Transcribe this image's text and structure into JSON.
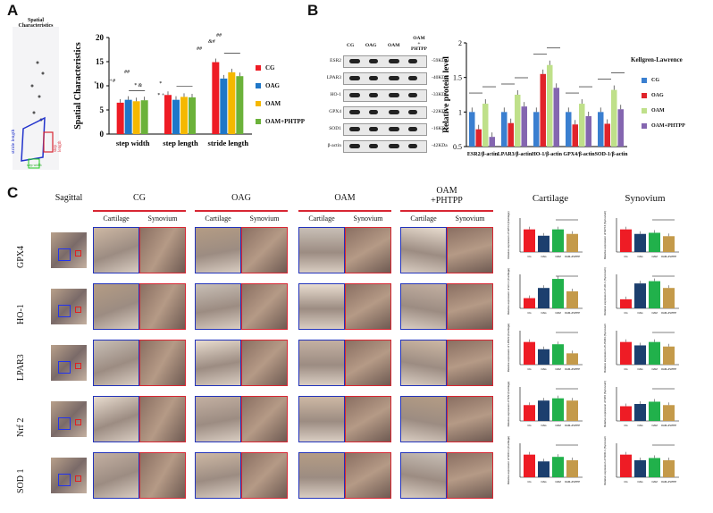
{
  "panelA": {
    "letter": "A",
    "mouse_label": "Spatial Characteristics",
    "stride_label": "stride length",
    "step_width_label": "step width",
    "step_length_label": "step length",
    "chart_data": {
      "type": "bar",
      "categories": [
        "step width",
        "step length",
        "stride length"
      ],
      "ylabel": "Spatial Characteristics",
      "ylim": [
        0,
        20
      ],
      "yticks": [
        "0",
        "5",
        "10",
        "15",
        "20"
      ],
      "series": [
        {
          "name": "CG",
          "color": "#ee1c25",
          "values": [
            6.5,
            8.1,
            14.9
          ]
        },
        {
          "name": "OAG",
          "color": "#1f77c8",
          "values": [
            7.1,
            7.1,
            11.5
          ]
        },
        {
          "name": "OAM",
          "color": "#f5b800",
          "values": [
            6.8,
            7.7,
            12.8
          ]
        },
        {
          "name": "OAM+PHTPP",
          "color": "#6bb23a",
          "values": [
            7.0,
            7.6,
            12.0
          ]
        }
      ],
      "annotations": [
        "*",
        "+#",
        "##",
        "* &",
        "*",
        "* +",
        "##",
        "&#",
        "##",
        "* &",
        "+"
      ]
    }
  },
  "panelB": {
    "letter": "B",
    "lanes": [
      "CG",
      "OAG",
      "OAM",
      "OAM\n+\nPHTPP"
    ],
    "blots": [
      {
        "name": "ESR2",
        "kda": "-59KDa"
      },
      {
        "name": "LPAR3",
        "kda": "-40KDa"
      },
      {
        "name": "HO-1",
        "kda": "-33KDa"
      },
      {
        "name": "GPX4",
        "kda": "-22KDa"
      },
      {
        "name": "SOD1",
        "kda": "-16KDa"
      },
      {
        "name": "β-actin",
        "kda": "-42KDa"
      }
    ],
    "chart_data": {
      "type": "bar",
      "categories": [
        "ESR2/β-actin",
        "LPAR3/β-actin",
        "HO-1/β-actin",
        "GPX4/β-actin",
        "SOD-1/β-actin"
      ],
      "ylabel": "Relative protein level",
      "legend_title": "Kellgren-Lawrence",
      "ylim": [
        0.5,
        2
      ],
      "yticks": [
        "0.5",
        "1",
        "1.5",
        "2"
      ],
      "series": [
        {
          "name": "CG",
          "color": "#3a7fd0",
          "values": [
            1.0,
            1.0,
            1.0,
            1.0,
            1.0
          ]
        },
        {
          "name": "OAG",
          "color": "#e0242b",
          "values": [
            0.75,
            0.84,
            1.55,
            0.82,
            0.83
          ]
        },
        {
          "name": "OAM",
          "color": "#bfe08a",
          "values": [
            1.12,
            1.25,
            1.68,
            1.12,
            1.32
          ]
        },
        {
          "name": "OAM+PHTPP",
          "color": "#8466b0",
          "values": [
            0.64,
            1.08,
            1.35,
            0.94,
            1.04
          ]
        }
      ]
    }
  },
  "panelC": {
    "letter": "C",
    "sagittal_label": "Sagittal",
    "groups": [
      "CG",
      "OAG",
      "OAM",
      "OAM\n+PHTPP"
    ],
    "sub_cart": "Cartilage",
    "sub_syn": "Synovium",
    "rows": [
      "GPX4",
      "HO-1",
      "LPAR3",
      "Nrf 2",
      "SOD 1"
    ],
    "chart_title_cart": "Cartilage",
    "chart_title_syn": "Synovium",
    "bar_colors": [
      "#ee1c25",
      "#1c3f6e",
      "#21b14b",
      "#c49a4a"
    ],
    "bar_labels": [
      "CG",
      "OAG",
      "OAM",
      "OAM+PHTPP"
    ],
    "chart_data": [
      {
        "type": "bar",
        "name": "GPX4 Cartilage",
        "ylabel": "Relative expression of GPX4 (Cartilage)",
        "values": [
          1.0,
          0.72,
          1.0,
          0.8
        ]
      },
      {
        "type": "bar",
        "name": "GPX4 Synovium",
        "ylabel": "Relative expression of GPX4 (Synovium)",
        "values": [
          1.0,
          0.8,
          0.85,
          0.7
        ]
      },
      {
        "type": "bar",
        "name": "HO-1 Cartilage",
        "ylabel": "Relative expression of HO-1 (Cartilage)",
        "values": [
          0.45,
          0.9,
          1.3,
          0.75
        ]
      },
      {
        "type": "bar",
        "name": "HO-1 Synovium",
        "ylabel": "Relative expression of HO-1 (Synovium)",
        "values": [
          0.4,
          1.1,
          1.2,
          0.9
        ]
      },
      {
        "type": "bar",
        "name": "LPAR3 Cartilage",
        "ylabel": "Relative expression of LPAR3 (Cartilage)",
        "values": [
          1.0,
          0.68,
          0.9,
          0.5
        ]
      },
      {
        "type": "bar",
        "name": "LPAR3 Synovium",
        "ylabel": "Relative expression of LPAR3 (Synovium)",
        "values": [
          1.0,
          0.85,
          1.0,
          0.8
        ]
      },
      {
        "type": "bar",
        "name": "Nrf2 Cartilage",
        "ylabel": "Relative expression of Nrf2 (Cartilage)",
        "values": [
          0.7,
          0.9,
          1.0,
          0.9
        ]
      },
      {
        "type": "bar",
        "name": "Nrf2 Synovium",
        "ylabel": "Relative expression of Nrf2 (Synovium)",
        "values": [
          0.65,
          0.75,
          0.85,
          0.7
        ]
      },
      {
        "type": "bar",
        "name": "SOD1 Cartilage",
        "ylabel": "Relative expression of SOD-1 (Cartilage)",
        "values": [
          1.0,
          0.7,
          0.9,
          0.75
        ]
      },
      {
        "type": "bar",
        "name": "SOD1 Synovium",
        "ylabel": "Relative expression of SOD-1 (Synovium)",
        "values": [
          1.0,
          0.75,
          0.85,
          0.75
        ]
      }
    ]
  }
}
